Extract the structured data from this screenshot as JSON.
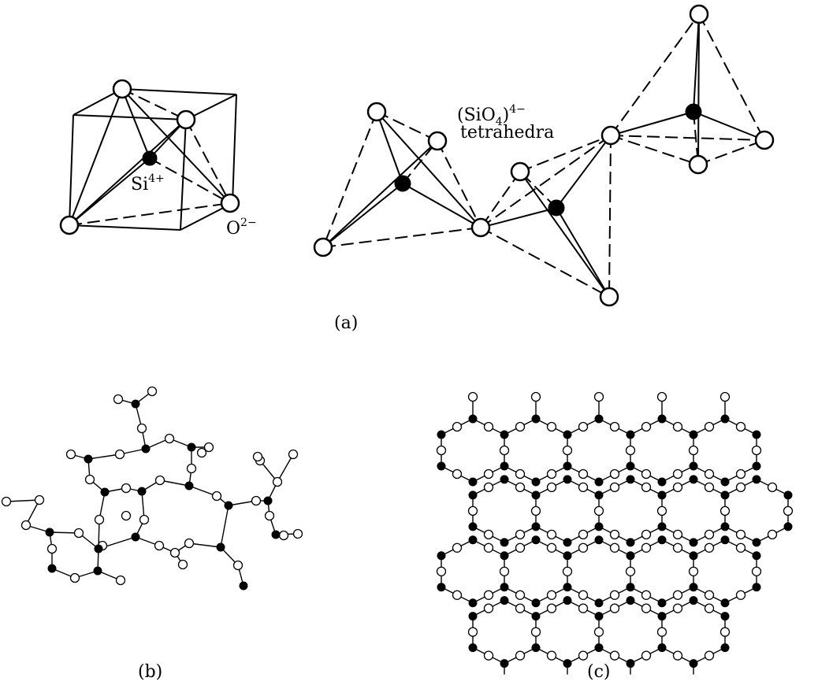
{
  "labels": {
    "si_ion": "Si",
    "si_charge": "4+",
    "o_ion": "O",
    "o_charge": "2−",
    "tetra_formula": "(SiO",
    "tetra_sub": "4",
    "tetra_close": ")",
    "tetra_charge": "4−",
    "tetra_word": "tetrahedra"
  },
  "captions": {
    "a": "(a)",
    "b": "(b)",
    "c": "(c)"
  },
  "legend_colors": {
    "silicon": "#000000",
    "oxygen": "#ffffff"
  }
}
